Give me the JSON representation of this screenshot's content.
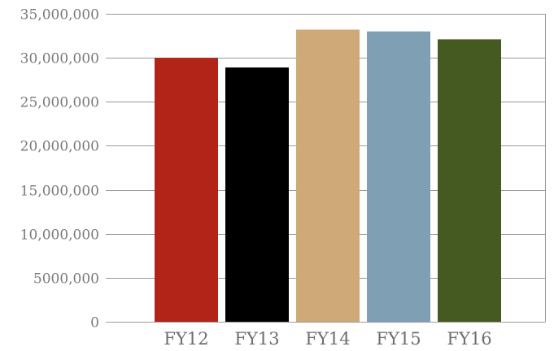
{
  "chart_data": {
    "type": "bar",
    "title": "",
    "xlabel": "",
    "ylabel": "",
    "categories": [
      "FY12",
      "FY13",
      "FY14",
      "FY15",
      "FY16"
    ],
    "values": [
      30000000,
      28900000,
      33200000,
      33000000,
      32100000
    ],
    "colors": [
      "#b22318",
      "#000000",
      "#cfa978",
      "#7f9fb5",
      "#445a21"
    ],
    "ylim": [
      0,
      35000000
    ],
    "yticks": [
      0,
      5000000,
      10000000,
      15000000,
      20000000,
      25000000,
      30000000,
      35000000
    ],
    "ytick_labels": [
      "0",
      "5000,000",
      "10,000,000",
      "15,000,000",
      "20,000,000",
      "25,000,000",
      "30,000,000",
      "35,000,000"
    ],
    "grid": true,
    "legend": "none"
  }
}
